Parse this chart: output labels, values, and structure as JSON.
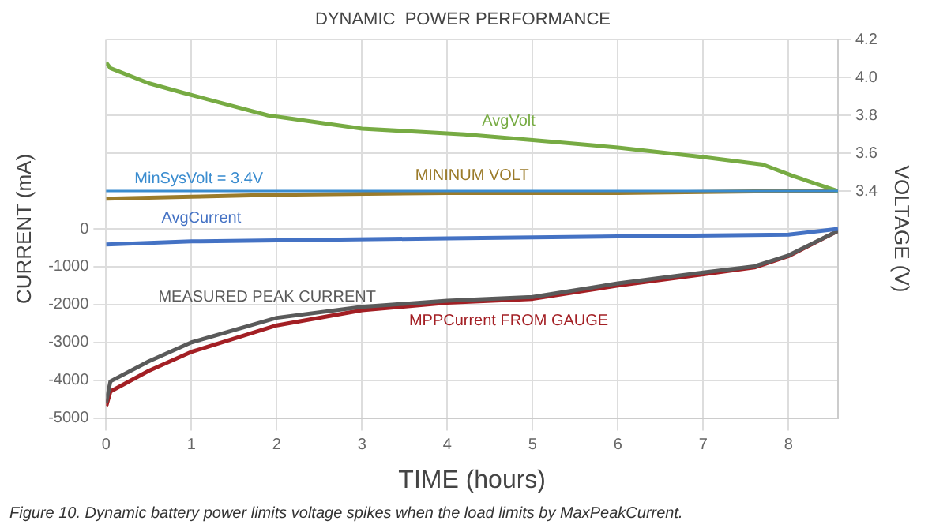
{
  "chart_data": {
    "type": "line",
    "title": "DYNAMIC  POWER PERFORMANCE",
    "xlabel": "TIME (hours)",
    "ylabel": "CURRENT (mA)",
    "y2label": "VOLTAGE (V)",
    "xlim": [
      0,
      8.58
    ],
    "xticks": [
      0,
      1,
      2,
      3,
      4,
      5,
      6,
      7,
      8
    ],
    "ylim": [
      -5000,
      5000
    ],
    "yticks": [
      0,
      -1000,
      -2000,
      -3000,
      -4000,
      -5000
    ],
    "y2lim": [
      2.2,
      4.2
    ],
    "y2ticks": [
      {
        "value": 3.4,
        "label": "3.4"
      },
      {
        "value": 3.6,
        "label": "3.6"
      },
      {
        "value": 3.8,
        "label": "3.8"
      },
      {
        "value": 4.0,
        "label": "4.0"
      },
      {
        "value": 4.2,
        "label": "4.2"
      }
    ],
    "grid": true,
    "legend": false,
    "marker": "none",
    "line_style": "solid",
    "ref_lines": [
      {
        "axis": "y2",
        "value": 3.4,
        "label": "MinSysVolt = 3.4V",
        "color": "#3a8ccf"
      }
    ],
    "series": [
      {
        "name": "AvgVolt",
        "color": "#77ab43",
        "axis": "y2",
        "x": [
          0,
          0.05,
          0.5,
          0.9,
          1.9,
          3,
          4.2,
          5,
          6,
          7,
          7.7,
          8.05,
          8.58
        ],
        "values": [
          4.08,
          4.05,
          3.97,
          3.92,
          3.8,
          3.73,
          3.7,
          3.67,
          3.63,
          3.58,
          3.54,
          3.48,
          3.4
        ]
      },
      {
        "name": "MININUM VOLT",
        "color": "#9b7b2a",
        "axis": "y2",
        "x": [
          0,
          1,
          2,
          4,
          6,
          8,
          8.58
        ],
        "values": [
          3.36,
          3.37,
          3.38,
          3.39,
          3.39,
          3.4,
          3.4
        ]
      },
      {
        "name": "AvgCurrent",
        "color": "#4472c4",
        "x": [
          0,
          1,
          2,
          4,
          6,
          8,
          8.58
        ],
        "values": [
          -410,
          -330,
          -300,
          -250,
          -200,
          -150,
          0
        ]
      },
      {
        "name": "MEASURED PEAK CURRENT",
        "color": "#5a5a5a",
        "x": [
          0,
          0.05,
          0.5,
          1,
          2,
          3,
          4,
          5,
          6,
          7,
          7.6,
          8,
          8.58
        ],
        "values": [
          -4600,
          -4030,
          -3500,
          -3000,
          -2350,
          -2060,
          -1900,
          -1800,
          -1440,
          -1150,
          -990,
          -700,
          -50
        ]
      },
      {
        "name": "MPPCurrent FROM GAUGE",
        "color": "#a31f24",
        "x": [
          0,
          0.05,
          0.5,
          1,
          2,
          3,
          4,
          5,
          6,
          7,
          7.6,
          8,
          8.58
        ],
        "values": [
          -4700,
          -4300,
          -3750,
          -3250,
          -2550,
          -2150,
          -1950,
          -1850,
          -1500,
          -1200,
          -1020,
          -720,
          -50
        ]
      }
    ],
    "annotations": [
      "Figure 10. Dynamic battery power limits voltage spikes when the load limits by MaxPeakCurrent."
    ]
  }
}
